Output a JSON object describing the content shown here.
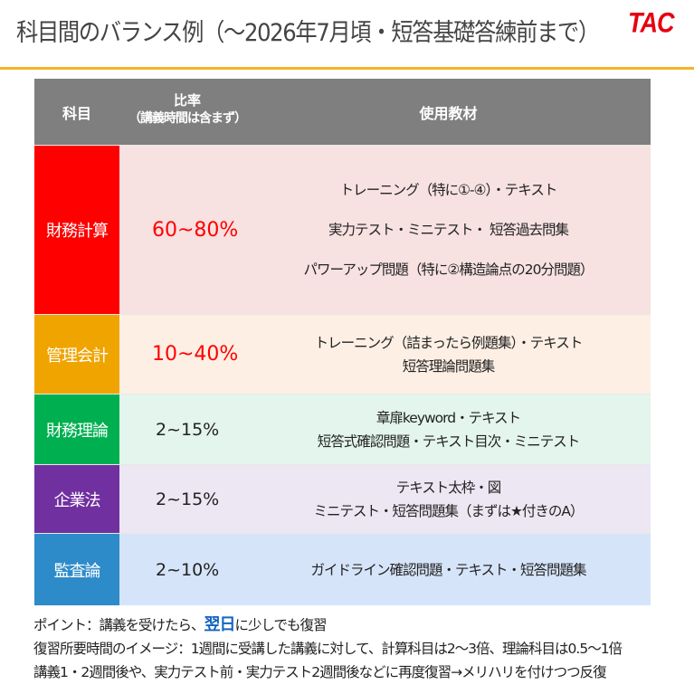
{
  "header": {
    "title": "科目間のバランス例（～2026年7月頃・短答基礎答練前まで）",
    "logo": "TAC"
  },
  "colors": {
    "accent_rule": "#f4b32a",
    "logo": "#e60012",
    "header_bg": "#7f7f7f",
    "highlight_ratio": "#ff0000",
    "point_highlight": "#1565c0"
  },
  "table": {
    "columns": {
      "subject": "科目",
      "ratio": "比率",
      "ratio_note": "（講義時間は含まず）",
      "materials": "使用教材"
    },
    "rows": [
      {
        "subject": "財務計算",
        "ratio": "60~80%",
        "subject_color": "#ff0000",
        "row_bg": "#f7e1e1",
        "ratio_highlight": true,
        "materials": [
          "トレーニング（特に①-④）・テキスト",
          "実力テスト・ミニテスト・ 短答過去問集",
          "パワーアップ問題（特に②構造論点の20分問題）"
        ]
      },
      {
        "subject": "管理会計",
        "ratio": "10~40%",
        "subject_color": "#f0a400",
        "row_bg": "#fdefe4",
        "ratio_highlight": true,
        "materials": [
          "トレーニング（詰まったら例題集）・テキスト",
          "短答理論問題集"
        ]
      },
      {
        "subject": "財務理論",
        "ratio": "2~15%",
        "subject_color": "#00b050",
        "row_bg": "#e3f5ec",
        "ratio_highlight": false,
        "materials": [
          "章扉keyword・テキスト",
          "短答式確認問題・テキスト目次・ミニテスト"
        ]
      },
      {
        "subject": "企業法",
        "ratio": "2~15%",
        "subject_color": "#7030a0",
        "row_bg": "#ede6f3",
        "ratio_highlight": false,
        "materials": [
          "テキスト太枠・図",
          "ミニテスト・短答問題集（まずは★付きのA）"
        ]
      },
      {
        "subject": "監査論",
        "ratio": "2~10%",
        "subject_color": "#2e8bc9",
        "row_bg": "#d6e4fa",
        "ratio_highlight": false,
        "materials": [
          "ガイドライン確認問題・テキスト・短答問題集"
        ]
      }
    ]
  },
  "footer": {
    "point_prefix": "ポイント：講義を受けたら、",
    "point_highlight": "翌日",
    "point_suffix": "に少しでも復習",
    "line2": "復習所要時間のイメージ：1週間に受講した講義に対して、計算科目は2～3倍、理論科目は0.5～1倍",
    "line3": "講義1・2週間後や、実力テスト前・実力テスト2週間後などに再度復習→メリハリを付けつつ反復"
  }
}
